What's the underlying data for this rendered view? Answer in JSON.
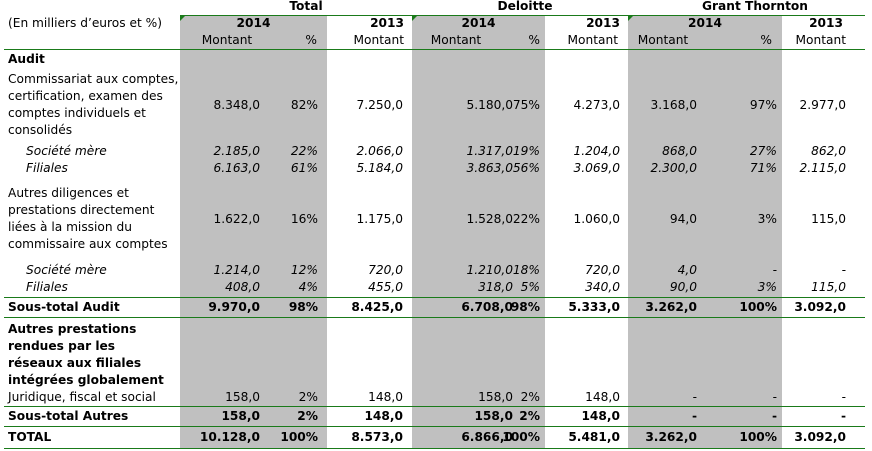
{
  "header": {
    "units": "(En milliers d’euros et %)",
    "groups": [
      "Total",
      "Deloitte",
      "Grant Thornton"
    ],
    "years": [
      "2014",
      "2013",
      "2014",
      "2013",
      "2014",
      "2013"
    ],
    "subheaders": [
      "Montant",
      "%",
      "Montant",
      "Montant",
      "%",
      "Montant",
      "Montant",
      "%",
      "Montant"
    ]
  },
  "rows": [
    {
      "label": "Audit",
      "style": "section",
      "values": []
    },
    {
      "label": "Commissariat aux comptes, certification, examen des comptes individuels et consolidés",
      "style": "normal",
      "values": [
        "8.348,0",
        "82%",
        "7.250,0",
        "5.180,0",
        "75%",
        "4.273,0",
        "3.168,0",
        "97%",
        "2.977,0"
      ]
    },
    {
      "label": "Société mère",
      "style": "italic",
      "values": [
        "2.185,0",
        "22%",
        "2.066,0",
        "1.317,0",
        "19%",
        "1.204,0",
        "868,0",
        "27%",
        "862,0"
      ]
    },
    {
      "label": "Filiales",
      "style": "italic",
      "values": [
        "6.163,0",
        "61%",
        "5.184,0",
        "3.863,0",
        "56%",
        "3.069,0",
        "2.300,0",
        "71%",
        "2.115,0"
      ]
    },
    {
      "label": "Autres diligences et prestations directement liées à la mission du commissaire aux comptes",
      "style": "normal",
      "values": [
        "1.622,0",
        "16%",
        "1.175,0",
        "1.528,0",
        "22%",
        "1.060,0",
        "94,0",
        "3%",
        "115,0"
      ]
    },
    {
      "label": "Société mère",
      "style": "italic",
      "values": [
        "1.214,0",
        "12%",
        "720,0",
        "1.210,0",
        "18%",
        "720,0",
        "4,0",
        "-",
        "-"
      ]
    },
    {
      "label": "Filiales",
      "style": "italic",
      "values": [
        "408,0",
        "4%",
        "455,0",
        "318,0",
        "5%",
        "340,0",
        "90,0",
        "3%",
        "115,0"
      ]
    },
    {
      "label": "Sous-total Audit",
      "style": "bold",
      "values": [
        "9.970,0",
        "98%",
        "8.425,0",
        "6.708,0",
        "98%",
        "5.333,0",
        "3.262,0",
        "100%",
        "3.092,0"
      ]
    },
    {
      "label": "Autres prestations rendues par les réseaux aux filiales intégrées globalement",
      "style": "section",
      "values": []
    },
    {
      "label": "Juridique, fiscal et social",
      "style": "normal",
      "values": [
        "158,0",
        "2%",
        "148,0",
        "158,0",
        "2%",
        "148,0",
        "-",
        "-",
        "-"
      ]
    },
    {
      "label": "Sous-total Autres",
      "style": "bold",
      "values": [
        "158,0",
        "2%",
        "148,0",
        "158,0",
        "2%",
        "148,0",
        "-",
        "-",
        "-"
      ]
    },
    {
      "label": "TOTAL",
      "style": "bold",
      "values": [
        "10.128,0",
        "100%",
        "8.573,0",
        "6.866,0",
        "100%",
        "5.481,0",
        "3.262,0",
        "100%",
        "3.092,0"
      ]
    }
  ],
  "colors": {
    "shade": "#c0c0c0",
    "rule": "#1a7a1a"
  }
}
